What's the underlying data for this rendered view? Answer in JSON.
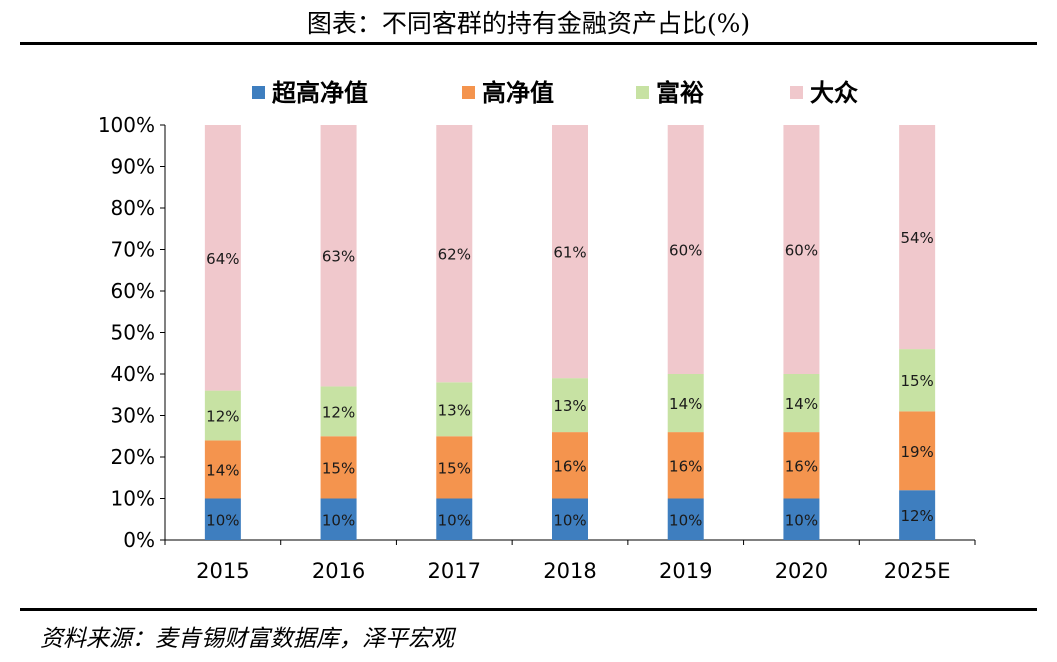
{
  "title": "图表：不同客群的持有金融资产占比(%)",
  "source": "资料来源：麦肯锡财富数据库，泽平宏观",
  "chart_data": {
    "type": "bar",
    "stacked": true,
    "title": "图表：不同客群的持有金融资产占比(%)",
    "categories": [
      "2015",
      "2016",
      "2017",
      "2018",
      "2019",
      "2020",
      "2025E"
    ],
    "series": [
      {
        "name": "超高净值",
        "color": "#3e7ebf",
        "values": [
          10,
          10,
          10,
          10,
          10,
          10,
          12
        ],
        "labels": [
          "10%",
          "10%",
          "10%",
          "10%",
          "10%",
          "10%",
          "12%"
        ]
      },
      {
        "name": "高净值",
        "color": "#f4944e",
        "values": [
          14,
          15,
          15,
          16,
          16,
          16,
          19
        ],
        "labels": [
          "14%",
          "15%",
          "15%",
          "16%",
          "16%",
          "16%",
          "19%"
        ]
      },
      {
        "name": "富裕",
        "color": "#c7e2a3",
        "values": [
          12,
          12,
          13,
          13,
          14,
          14,
          15
        ],
        "labels": [
          "12%",
          "12%",
          "13%",
          "13%",
          "14%",
          "14%",
          "15%"
        ]
      },
      {
        "name": "大众",
        "color": "#f0c8cc",
        "values": [
          64,
          63,
          62,
          61,
          60,
          60,
          54
        ],
        "labels": [
          "64%",
          "63%",
          "62%",
          "61%",
          "60%",
          "60%",
          "54%"
        ]
      }
    ],
    "yticks": [
      "0%",
      "10%",
      "20%",
      "30%",
      "40%",
      "50%",
      "60%",
      "70%",
      "80%",
      "90%",
      "100%"
    ],
    "ylim": [
      0,
      100
    ],
    "legend_position": "top",
    "xlabel": "",
    "ylabel": ""
  }
}
